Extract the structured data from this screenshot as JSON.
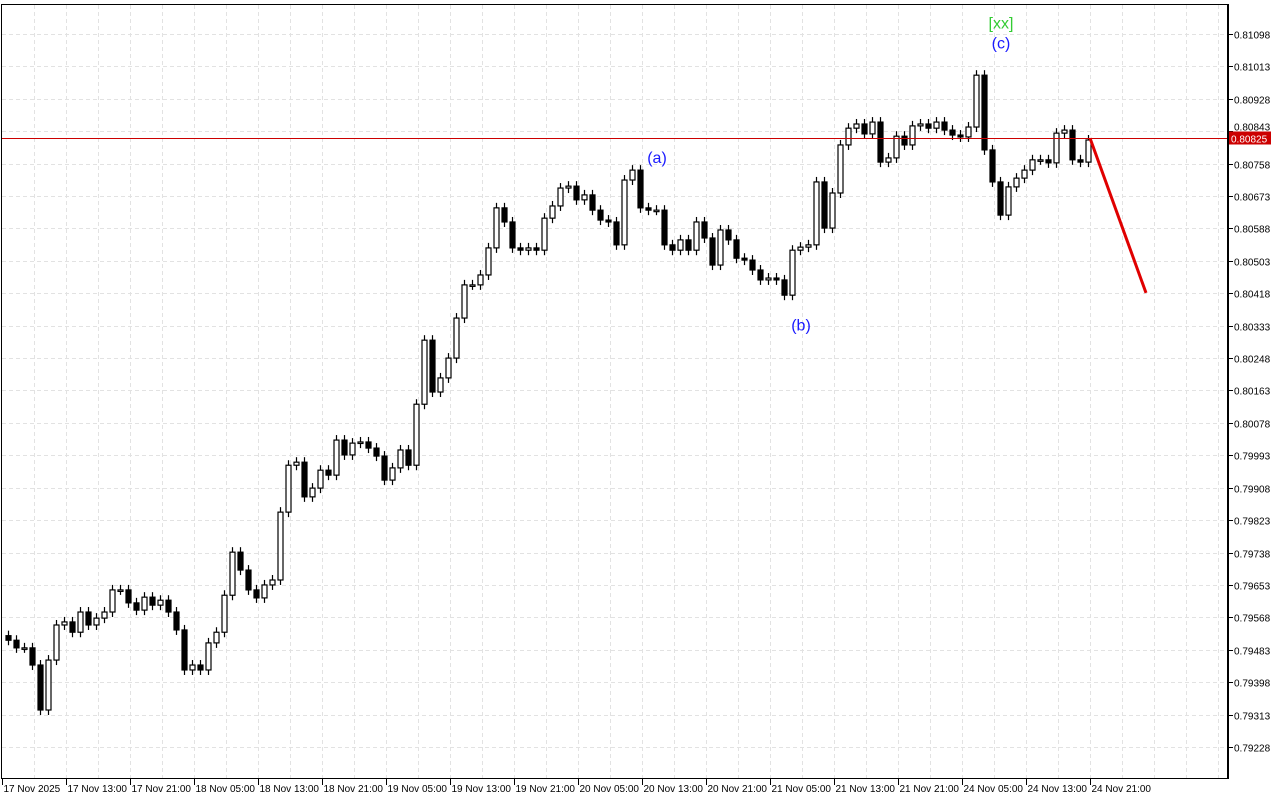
{
  "chart_data": {
    "type": "candlestick",
    "timeframe_hours": 1,
    "y_ticks": [
      "0.81098",
      "0.81013",
      "0.80928",
      "0.80843",
      "0.80758",
      "0.80673",
      "0.80588",
      "0.80503",
      "0.80418",
      "0.80333",
      "0.80248",
      "0.80163",
      "0.80078",
      "0.79993",
      "0.79908",
      "0.79823",
      "0.79738",
      "0.79653",
      "0.79568",
      "0.79483",
      "0.79398",
      "0.79313",
      "0.79228"
    ],
    "ylim": [
      0.79165,
      0.8118
    ],
    "x_ticks": [
      "17 Nov 2025",
      "17 Nov 13:00",
      "17 Nov 21:00",
      "18 Nov 05:00",
      "18 Nov 13:00",
      "18 Nov 21:00",
      "19 Nov 05:00",
      "19 Nov 13:00",
      "19 Nov 21:00",
      "20 Nov 05:00",
      "20 Nov 13:00",
      "20 Nov 21:00",
      "21 Nov 05:00",
      "21 Nov 13:00",
      "21 Nov 21:00",
      "24 Nov 05:00",
      "24 Nov 13:00",
      "24 Nov 21:00"
    ],
    "grid": true,
    "first_open": 0.7952,
    "closes": [
      0.79508,
      0.79488,
      0.79488,
      0.79443,
      0.79325,
      0.79456,
      0.79548,
      0.79556,
      0.79529,
      0.79582,
      0.79548,
      0.79566,
      0.79582,
      0.7964,
      0.7964,
      0.79606,
      0.79587,
      0.79621,
      0.796,
      0.79613,
      0.79582,
      0.79535,
      0.7943,
      0.79443,
      0.7943,
      0.79501,
      0.79529,
      0.79626,
      0.79739,
      0.79692,
      0.7964,
      0.79619,
      0.79653,
      0.79666,
      0.79844,
      0.79967,
      0.79975,
      0.79884,
      0.79907,
      0.79954,
      0.79941,
      0.80033,
      0.79994,
      0.80025,
      0.80028,
      0.80012,
      0.79991,
      0.79928,
      0.7996,
      0.80007,
      0.79967,
      0.80127,
      0.80295,
      0.80159,
      0.80196,
      0.80248,
      0.80353,
      0.8044,
      0.8044,
      0.80466,
      0.80537,
      0.80642,
      0.80605,
      0.80537,
      0.80531,
      0.80537,
      0.80531,
      0.80615,
      0.80647,
      0.80694,
      0.80699,
      0.80663,
      0.80676,
      0.80636,
      0.8061,
      0.80605,
      0.80545,
      0.80715,
      0.80741,
      0.80642,
      0.80636,
      0.80636,
      0.80545,
      0.80531,
      0.80558,
      0.80531,
      0.80605,
      0.80563,
      0.80492,
      0.80584,
      0.80558,
      0.8051,
      0.80505,
      0.80479,
      0.80453,
      0.80458,
      0.80453,
      0.80413,
      0.80531,
      0.80539,
      0.80545,
      0.8071,
      0.80589,
      0.80681,
      0.80807,
      0.80851,
      0.80862,
      0.80836,
      0.80867,
      0.80762,
      0.80773,
      0.8083,
      0.80807,
      0.80857,
      0.80862,
      0.80851,
      0.80867,
      0.80846,
      0.80833,
      0.80828,
      0.80854,
      0.8099,
      0.80794,
      0.8071,
      0.80623,
      0.80697,
      0.8072,
      0.80741,
      0.80768,
      0.80768,
      0.8076,
      0.80838,
      0.80846,
      0.80768,
      0.80762,
      0.8082
    ],
    "current_price": {
      "label": "0.80825",
      "value": 0.80825,
      "color": "#cc0000"
    },
    "forecast_line": {
      "from": 0.80825,
      "to": 0.80419,
      "hours": 7,
      "color": "#e00000"
    },
    "annotations": [
      {
        "text": "(a)",
        "candle": 81,
        "price": 0.8076,
        "color": "#1a1aff"
      },
      {
        "text": "(b)",
        "candle": 99,
        "price": 0.8032,
        "color": "#1a1aff"
      },
      {
        "text": "(c)",
        "candle": 124,
        "price": 0.8106,
        "color": "#1a1aff"
      },
      {
        "text": "[xx]",
        "candle": 124,
        "price": 0.81108,
        "color": "#33cc33"
      }
    ],
    "bull_color": "#ffffff",
    "bear_color": "#000000"
  }
}
